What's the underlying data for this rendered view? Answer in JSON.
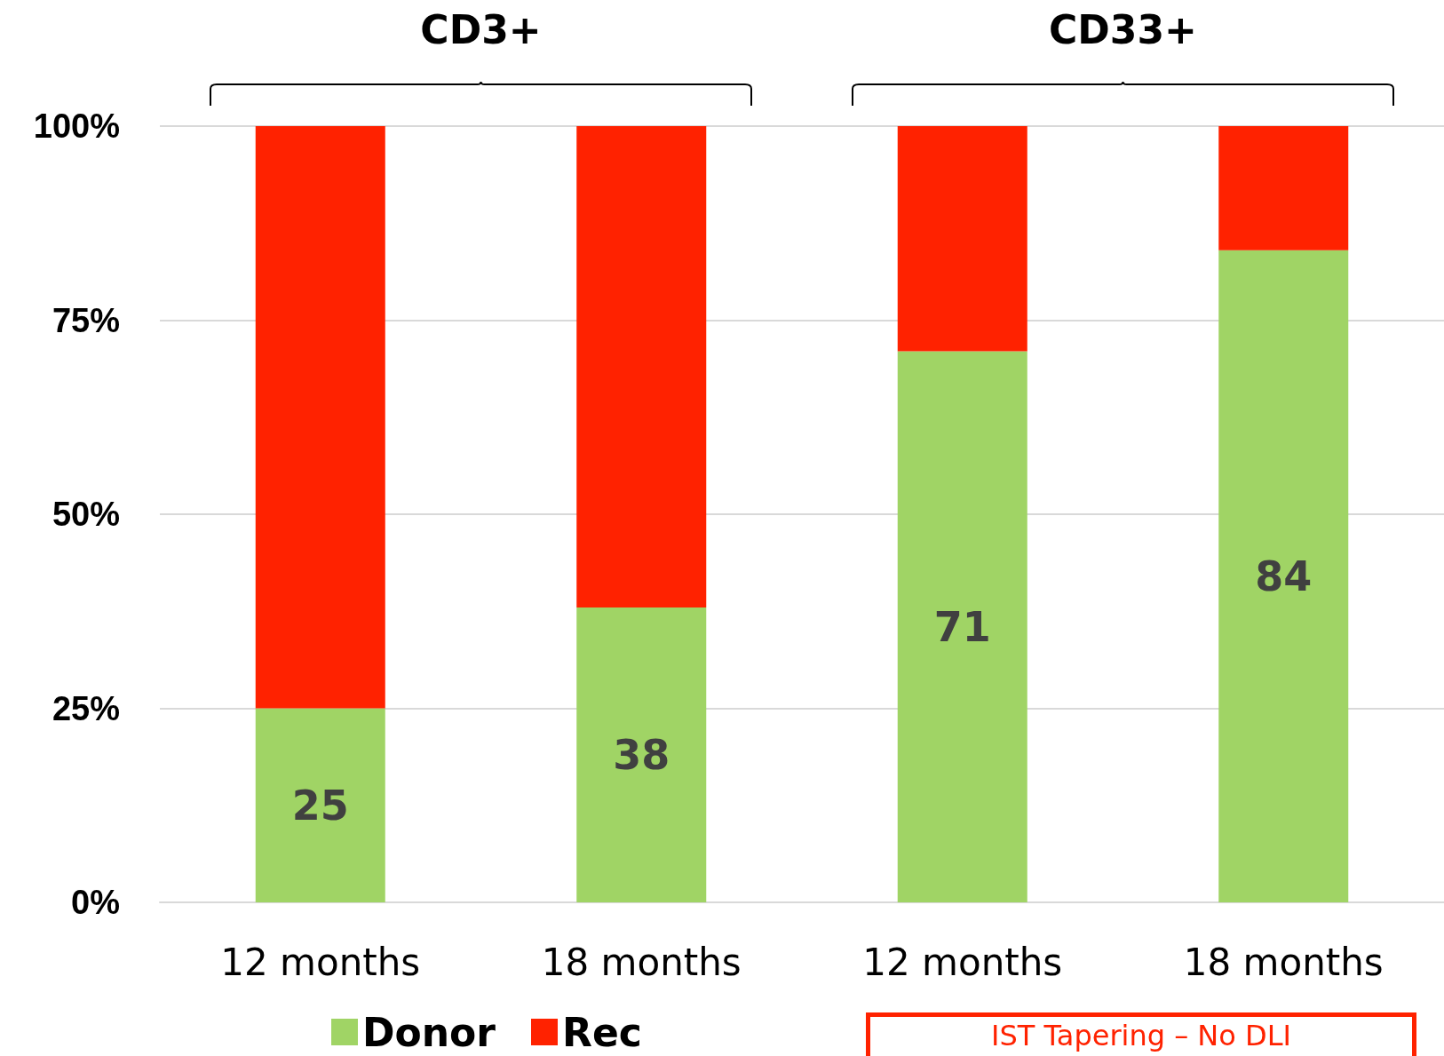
{
  "chart_data": {
    "type": "bar",
    "stacked": true,
    "categories": [
      "12 months",
      "18 months",
      "12 months",
      "18 months"
    ],
    "series": [
      {
        "name": "Donor",
        "color": "#a0d465",
        "values": [
          25,
          38,
          71,
          84
        ],
        "value_labels": [
          "25",
          "38",
          "71",
          "84"
        ]
      },
      {
        "name": "Rec",
        "color": "#ff2200",
        "values": [
          75,
          62,
          29,
          16
        ]
      }
    ],
    "ylim": [
      0,
      100
    ],
    "yticks": [
      {
        "value": 0,
        "label": "0%"
      },
      {
        "value": 25,
        "label": "25%"
      },
      {
        "value": 50,
        "label": "50%"
      },
      {
        "value": 75,
        "label": "75%"
      },
      {
        "value": 100,
        "label": "100%"
      }
    ],
    "grid": "y",
    "legend": "bottom left",
    "annotations": [
      "CD3+",
      "CD33+",
      "IST Tapering – No DLI"
    ]
  }
}
